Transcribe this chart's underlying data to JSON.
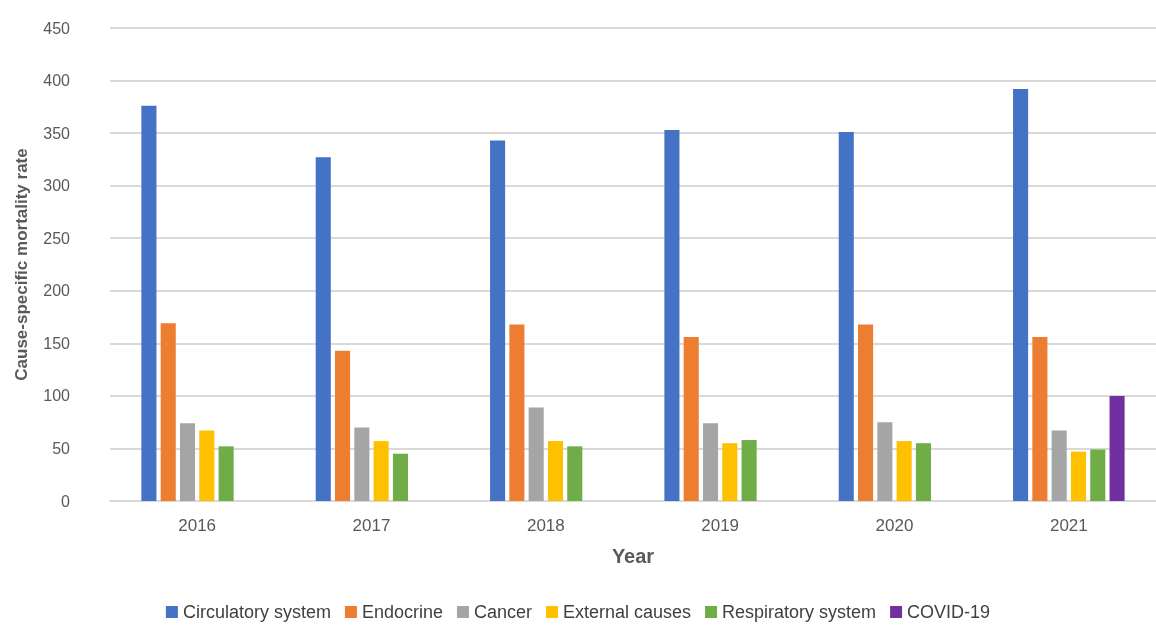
{
  "chart_data": {
    "type": "bar",
    "xlabel": "Year",
    "ylabel": "Cause-specific mortality rate",
    "categories": [
      "2016",
      "2017",
      "2018",
      "2019",
      "2020",
      "2021"
    ],
    "series": [
      {
        "name": "Circulatory system",
        "color": "#4472c4",
        "values": [
          376,
          327,
          343,
          353,
          351,
          392
        ]
      },
      {
        "name": "Endocrine",
        "color": "#ed7d31",
        "values": [
          169,
          143,
          168,
          156,
          168,
          156
        ]
      },
      {
        "name": "Cancer",
        "color": "#a5a5a5",
        "values": [
          74,
          70,
          89,
          74,
          75,
          67
        ]
      },
      {
        "name": "External causes",
        "color": "#ffc000",
        "values": [
          67,
          57,
          57,
          55,
          57,
          47
        ]
      },
      {
        "name": "Respiratory system",
        "color": "#70ad47",
        "values": [
          52,
          45,
          52,
          58,
          55,
          49
        ]
      },
      {
        "name": "COVID-19",
        "color": "#7030a0",
        "values": [
          null,
          null,
          null,
          null,
          null,
          100
        ]
      }
    ],
    "ylim": [
      0,
      450
    ],
    "yticks": [
      0,
      50,
      100,
      150,
      200,
      250,
      300,
      350,
      400,
      450
    ],
    "grid": "y",
    "legend": "bottom"
  }
}
